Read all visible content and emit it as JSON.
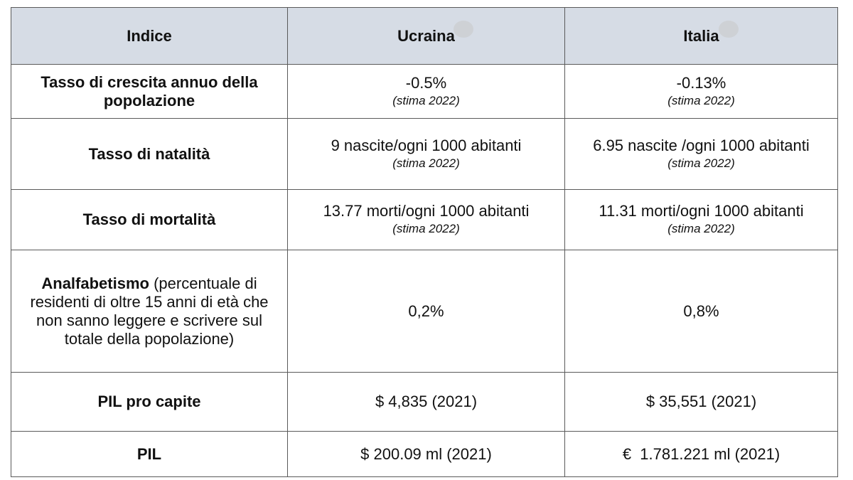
{
  "header": {
    "col1": "Indice",
    "col2": "Ucraina",
    "col3": "Italia"
  },
  "rows": [
    {
      "label": "Tasso di crescita annuo della popolazione",
      "ukraine": {
        "value": "-0.5%",
        "note": "(stima 2022)"
      },
      "italy": {
        "value": "-0.13%",
        "note": "(stima 2022)"
      }
    },
    {
      "label": "Tasso di natalità",
      "ukraine": {
        "value": "9 nascite/ogni 1000 abitanti",
        "note": "(stima 2022)"
      },
      "italy": {
        "value": "6.95 nascite /ogni 1000 abitanti",
        "note": "(stima 2022)"
      }
    },
    {
      "label": "Tasso di mortalità",
      "ukraine": {
        "value": "13.77 morti/ogni 1000 abitanti",
        "note": "(stima 2022)"
      },
      "italy": {
        "value": "11.31 morti/ogni 1000 abitanti",
        "note": "(stima 2022)"
      }
    },
    {
      "label_bold": "Analfabetismo",
      "label_rest": " (percentuale di residenti di oltre 15 anni di età che non sanno leggere e scrivere sul totale della popolazione)",
      "ukraine": {
        "value": "0,2%"
      },
      "italy": {
        "value": "0,8%"
      }
    },
    {
      "label": "PIL pro capite",
      "ukraine": {
        "value": "$ 4,835 (2021)"
      },
      "italy": {
        "value": "$ 35,551 (2021)"
      }
    },
    {
      "label": "PIL",
      "ukraine": {
        "value": "$ 200.09 ml (2021)"
      },
      "italy": {
        "value": "€  1.781.221 ml (2021)"
      }
    }
  ]
}
